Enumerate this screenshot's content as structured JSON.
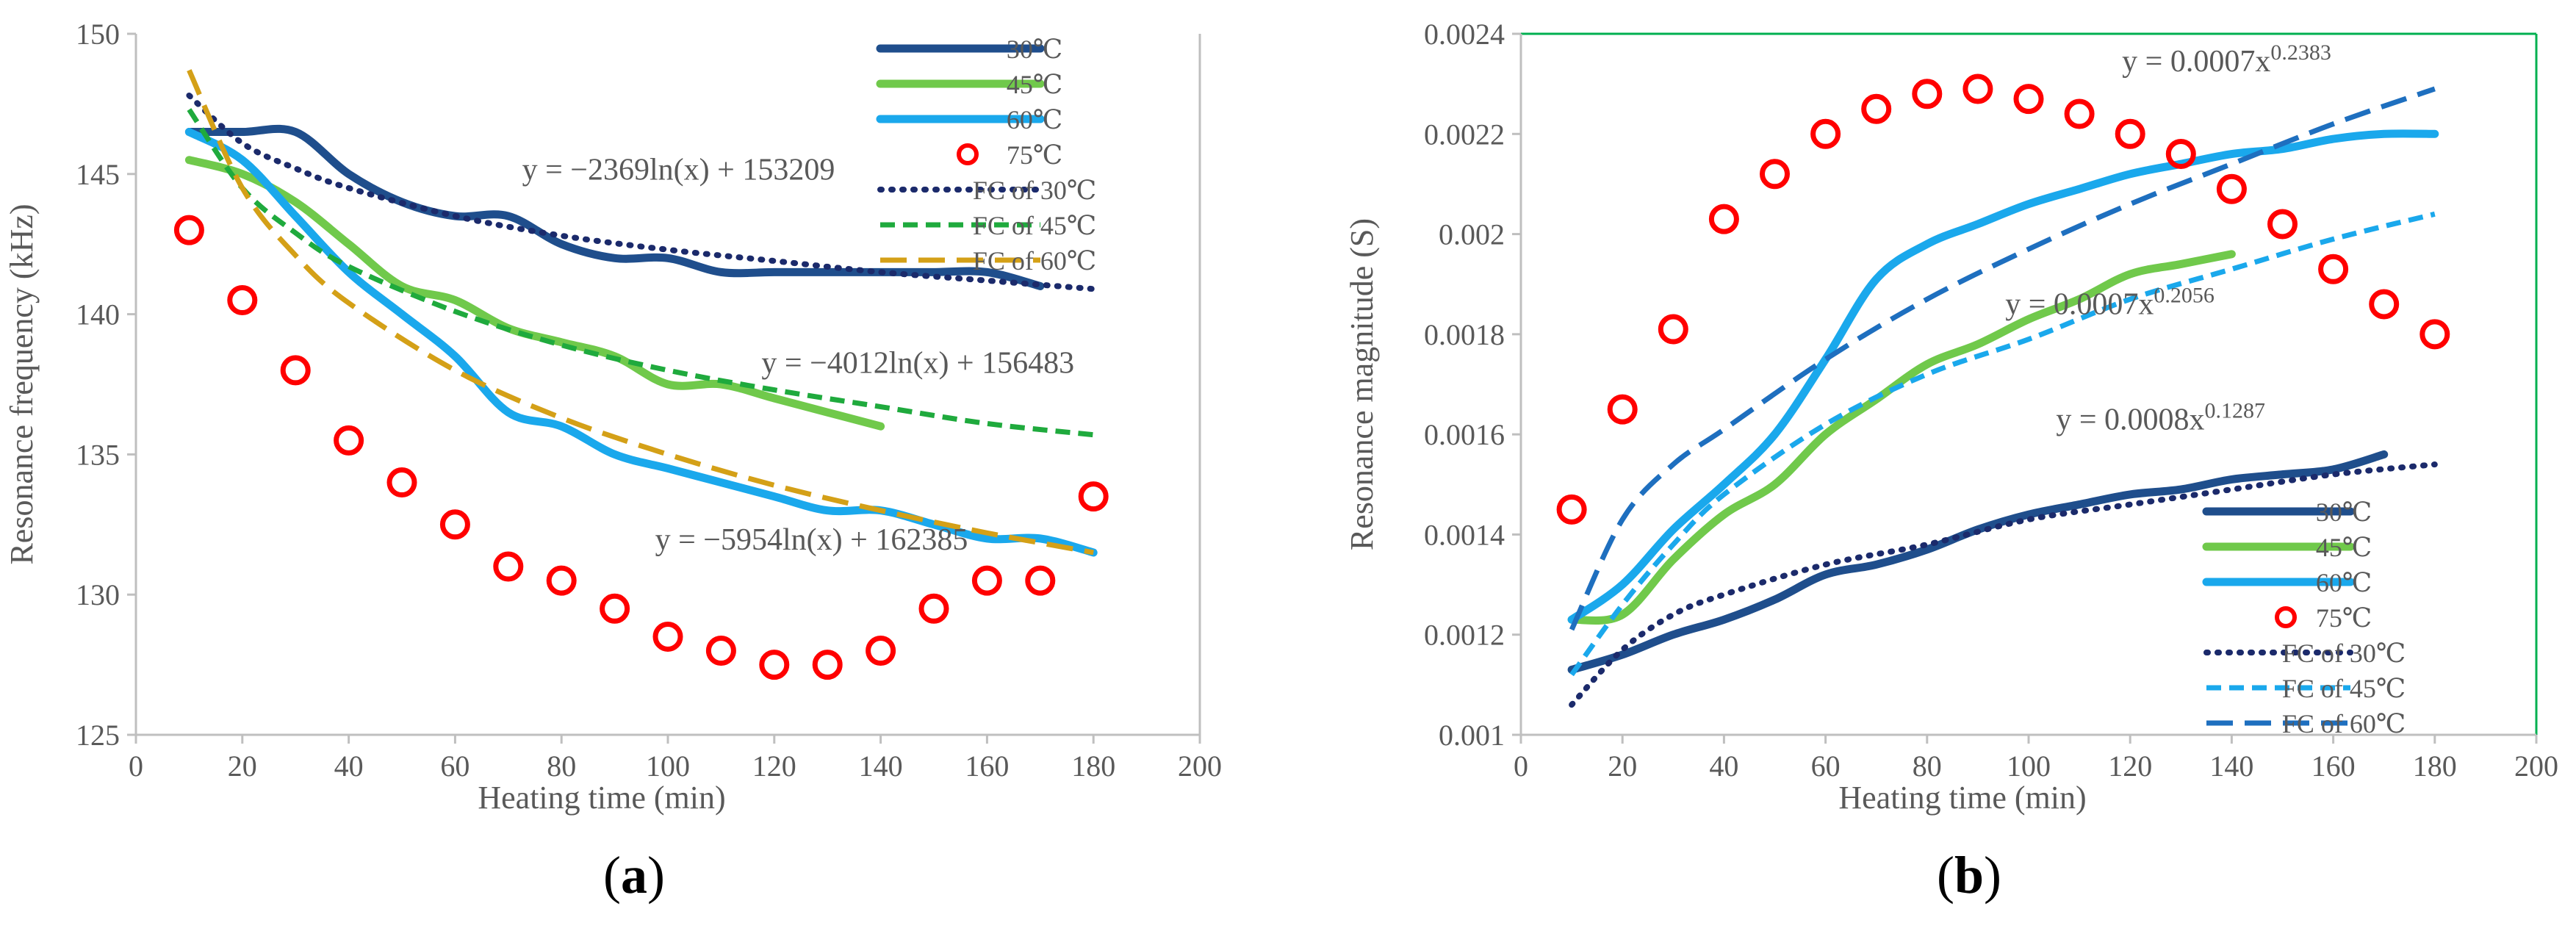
{
  "colors": {
    "c30": "#1F4E8C",
    "c45": "#70C94B",
    "c60": "#1AA8EC",
    "c75": "#FF0000",
    "fc30": "#1B2A6B",
    "fc45": "#1FAA3D",
    "fc60a": "#D4A017",
    "fc60b": "#1E6FBF",
    "axis": "#BFBFBF",
    "frame_b": "#00B050"
  },
  "chart_data": [
    {
      "type": "line",
      "panel_label": "(a)",
      "panel_letter": "a",
      "xlabel": "Heating time (min)",
      "ylabel": "Resonance frequency (kHz)",
      "xlim": [
        0,
        200
      ],
      "ylim": [
        125,
        150
      ],
      "xticks": [
        0,
        20,
        40,
        60,
        80,
        100,
        120,
        140,
        160,
        180,
        200
      ],
      "yticks": [
        125,
        130,
        135,
        140,
        145,
        150
      ],
      "legend_position": "top-right",
      "legend": [
        {
          "label": "30℃",
          "style": "solid",
          "color": "c30"
        },
        {
          "label": "45℃",
          "style": "solid",
          "color": "c45"
        },
        {
          "label": "60℃",
          "style": "solid",
          "color": "c60"
        },
        {
          "label": "75℃",
          "style": "circle",
          "color": "c75"
        },
        {
          "label": "FC of 30℃",
          "style": "dotted",
          "color": "fc30"
        },
        {
          "label": "FC of 45℃",
          "style": "dashed",
          "color": "fc45"
        },
        {
          "label": "FC of 60℃",
          "style": "longdash",
          "color": "fc60a"
        }
      ],
      "series": [
        {
          "name": "30℃",
          "kind": "line",
          "color": "c30",
          "x": [
            10,
            20,
            30,
            40,
            50,
            60,
            70,
            80,
            90,
            100,
            110,
            120,
            130,
            140,
            150,
            160,
            170
          ],
          "values": [
            146.5,
            146.5,
            146.5,
            145,
            144,
            143.5,
            143.5,
            142.5,
            142,
            142,
            141.5,
            141.5,
            141.5,
            141.5,
            141.5,
            141.5,
            141
          ]
        },
        {
          "name": "45℃",
          "kind": "line",
          "color": "c45",
          "x": [
            10,
            20,
            30,
            40,
            50,
            60,
            70,
            80,
            90,
            100,
            110,
            120,
            130,
            140
          ],
          "values": [
            145.5,
            145,
            144,
            142.5,
            141,
            140.5,
            139.5,
            139,
            138.5,
            137.5,
            137.5,
            137,
            136.5,
            136
          ]
        },
        {
          "name": "60℃",
          "kind": "line",
          "color": "c60",
          "x": [
            10,
            20,
            30,
            40,
            50,
            60,
            70,
            80,
            90,
            100,
            110,
            120,
            130,
            140,
            150,
            160,
            170,
            180
          ],
          "values": [
            146.5,
            145.5,
            143.5,
            141.5,
            140,
            138.5,
            136.5,
            136,
            135,
            134.5,
            134,
            133.5,
            133,
            133,
            132.5,
            132,
            132,
            131.5
          ]
        },
        {
          "name": "75℃",
          "kind": "scatter",
          "color": "c75",
          "x": [
            10,
            20,
            30,
            40,
            50,
            60,
            70,
            80,
            90,
            100,
            110,
            120,
            130,
            140,
            150,
            160,
            170,
            180
          ],
          "values": [
            143,
            140.5,
            138,
            135.5,
            134,
            132.5,
            131,
            130.5,
            129.5,
            128.5,
            128,
            127.5,
            127.5,
            128,
            129.5,
            130.5,
            130.5,
            133.5
          ]
        },
        {
          "name": "FC of 30℃",
          "kind": "fit",
          "style": "dotted",
          "color": "fc30",
          "x": [
            10,
            20,
            30,
            40,
            60,
            80,
            100,
            120,
            140,
            160,
            180
          ],
          "values": [
            147.8,
            146.1,
            145.2,
            144.5,
            143.5,
            142.8,
            142.3,
            141.9,
            141.5,
            141.2,
            140.9
          ]
        },
        {
          "name": "FC of 45℃",
          "kind": "fit",
          "style": "dashed",
          "color": "fc45",
          "x": [
            10,
            20,
            30,
            40,
            60,
            80,
            100,
            120,
            140,
            160,
            180
          ],
          "values": [
            147.3,
            144.5,
            142.9,
            141.7,
            140.1,
            138.9,
            138.0,
            137.3,
            136.7,
            136.1,
            135.7
          ]
        },
        {
          "name": "FC of 60℃",
          "kind": "fit",
          "style": "longdash",
          "color": "fc60a",
          "x": [
            10,
            20,
            30,
            40,
            60,
            80,
            100,
            120,
            140,
            160,
            180
          ],
          "values": [
            148.7,
            144.5,
            142.1,
            140.4,
            138.0,
            136.3,
            135.0,
            133.9,
            133.0,
            132.2,
            131.5
          ]
        }
      ],
      "annotations": [
        {
          "text": "y = −2369ln(x) + 153209",
          "x": 102,
          "y": 144.8
        },
        {
          "text": "y = −4012ln(x) + 156483",
          "x": 147,
          "y": 137.9
        },
        {
          "text": "y = −5954ln(x) + 162385",
          "x": 127,
          "y": 131.6
        }
      ]
    },
    {
      "type": "line",
      "panel_label": "(b)",
      "panel_letter": "b",
      "xlabel": "Heating time (min)",
      "ylabel": "Resonance magnitude (S)",
      "xlim": [
        0,
        200
      ],
      "ylim": [
        0.001,
        0.0024
      ],
      "xticks": [
        0,
        20,
        40,
        60,
        80,
        100,
        120,
        140,
        160,
        180,
        200
      ],
      "yticks": [
        "0.001",
        "0.0012",
        "0.0014",
        "0.0016",
        "0.0018",
        "0.002",
        "0.0022",
        "0.0024"
      ],
      "legend_position": "bottom-right",
      "legend": [
        {
          "label": "30℃",
          "style": "solid",
          "color": "c30"
        },
        {
          "label": "45℃",
          "style": "solid",
          "color": "c45"
        },
        {
          "label": "60℃",
          "style": "solid",
          "color": "c60"
        },
        {
          "label": "75℃",
          "style": "circle",
          "color": "c75"
        },
        {
          "label": "FC of 30℃",
          "style": "dotted",
          "color": "fc30"
        },
        {
          "label": "FC of 45℃",
          "style": "dashed",
          "color": "c60"
        },
        {
          "label": "FC of 60℃",
          "style": "longdash",
          "color": "fc60b"
        }
      ],
      "series": [
        {
          "name": "30℃",
          "kind": "line",
          "color": "c30",
          "x": [
            10,
            20,
            30,
            40,
            50,
            60,
            70,
            80,
            90,
            100,
            110,
            120,
            130,
            140,
            150,
            160,
            170
          ],
          "values": [
            0.00113,
            0.00116,
            0.0012,
            0.00123,
            0.00127,
            0.00132,
            0.00134,
            0.00137,
            0.00141,
            0.00144,
            0.00146,
            0.00148,
            0.00149,
            0.00151,
            0.00152,
            0.00153,
            0.00156
          ]
        },
        {
          "name": "45℃",
          "kind": "line",
          "color": "c45",
          "x": [
            10,
            20,
            30,
            40,
            50,
            60,
            70,
            80,
            90,
            100,
            110,
            120,
            130,
            140
          ],
          "values": [
            0.00123,
            0.00124,
            0.00135,
            0.00144,
            0.0015,
            0.0016,
            0.00167,
            0.00174,
            0.00178,
            0.00183,
            0.00187,
            0.00192,
            0.00194,
            0.00196
          ]
        },
        {
          "name": "60℃",
          "kind": "line",
          "color": "c60",
          "x": [
            10,
            20,
            30,
            40,
            50,
            60,
            70,
            80,
            90,
            100,
            110,
            120,
            130,
            140,
            150,
            160,
            170,
            180
          ],
          "values": [
            0.00123,
            0.0013,
            0.00141,
            0.0015,
            0.0016,
            0.00175,
            0.00191,
            0.00198,
            0.00202,
            0.00206,
            0.00209,
            0.00212,
            0.00214,
            0.00216,
            0.00217,
            0.00219,
            0.0022,
            0.0022
          ]
        },
        {
          "name": "75℃",
          "kind": "scatter",
          "color": "c75",
          "x": [
            10,
            20,
            30,
            40,
            50,
            60,
            70,
            80,
            90,
            100,
            110,
            120,
            130,
            140,
            150,
            160,
            170,
            180
          ],
          "values": [
            0.00145,
            0.00165,
            0.00181,
            0.00203,
            0.00212,
            0.0022,
            0.00225,
            0.00228,
            0.00229,
            0.00227,
            0.00224,
            0.0022,
            0.00216,
            0.00209,
            0.00202,
            0.00193,
            0.00186,
            0.0018
          ]
        },
        {
          "name": "FC of 30℃",
          "kind": "fit",
          "style": "dotted",
          "color": "fc30",
          "x": [
            10,
            20,
            30,
            40,
            60,
            80,
            100,
            120,
            140,
            160,
            180
          ],
          "values": [
            0.00106,
            0.00117,
            0.00124,
            0.00128,
            0.00134,
            0.00138,
            0.00143,
            0.00146,
            0.00149,
            0.00152,
            0.00154
          ]
        },
        {
          "name": "FC of 45℃",
          "kind": "fit",
          "style": "dashed",
          "color": "c60",
          "x": [
            10,
            20,
            30,
            40,
            60,
            80,
            100,
            120,
            140,
            160,
            180
          ],
          "values": [
            0.00112,
            0.00126,
            0.00138,
            0.00148,
            0.00162,
            0.00172,
            0.00179,
            0.00187,
            0.00193,
            0.00199,
            0.00204
          ]
        },
        {
          "name": "FC of 60℃",
          "kind": "fit",
          "style": "longdash",
          "color": "fc60b",
          "x": [
            10,
            20,
            30,
            40,
            60,
            80,
            100,
            120,
            140,
            160,
            180
          ],
          "values": [
            0.00121,
            0.00143,
            0.00154,
            0.00161,
            0.00175,
            0.00187,
            0.00197,
            0.00206,
            0.00214,
            0.00222,
            0.00229
          ]
        }
      ],
      "annotations": [
        {
          "text": "y = 0.0007x",
          "sup": "0.2383",
          "x": 139,
          "y": 0.002325
        },
        {
          "text": "y = 0.0007x",
          "sup": "0.2056",
          "x": 116,
          "y": 0.00184
        },
        {
          "text": "y = 0.0008x",
          "sup": "0.1287",
          "x": 126,
          "y": 0.00161
        }
      ]
    }
  ]
}
